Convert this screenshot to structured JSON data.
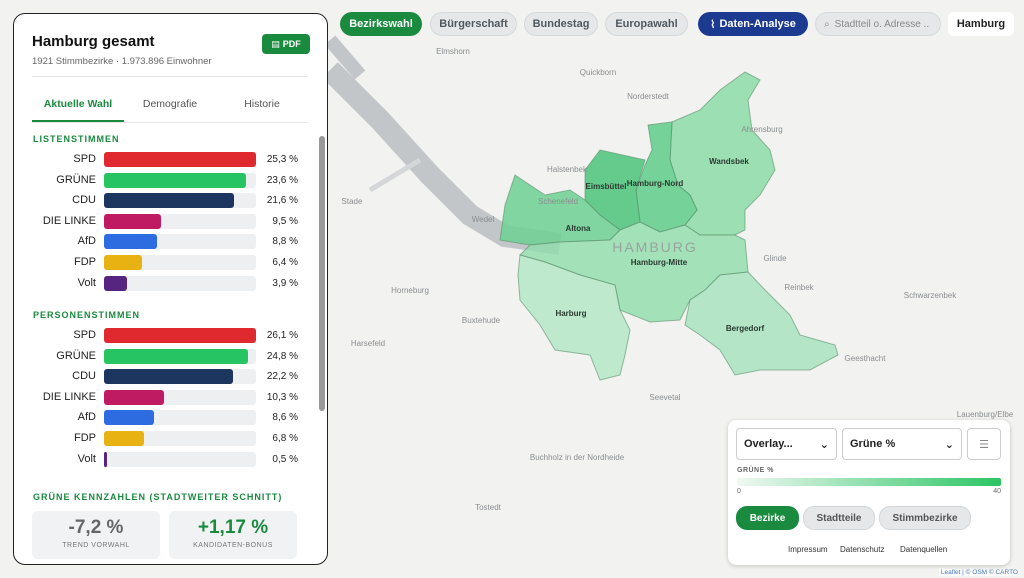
{
  "nav": {
    "tabs": [
      "Bezirkswahl",
      "Bürgerschaft",
      "Bundestag",
      "Europawahl"
    ],
    "analysis": "Daten-Analyse",
    "search_placeholder": "Stadtteil o. Adresse ..",
    "city": "Hamburg"
  },
  "panel": {
    "title": "Hamburg gesamt",
    "subtitle": "1921 Stimmbezirke · 1.973.896 Einwohner",
    "pdf": "PDF",
    "tabs": [
      "Aktuelle Wahl",
      "Demografie",
      "Historie"
    ],
    "sections": [
      {
        "heading": "LISTENSTIMMEN",
        "rows": [
          {
            "party": "SPD",
            "value": 25.3,
            "label": "25,3 %",
            "color": "#e0282f"
          },
          {
            "party": "GRÜNE",
            "value": 23.6,
            "label": "23,6 %",
            "color": "#27c464"
          },
          {
            "party": "CDU",
            "value": 21.6,
            "label": "21,6 %",
            "color": "#1d3660"
          },
          {
            "party": "DIE LINKE",
            "value": 9.5,
            "label": "9,5 %",
            "color": "#be1b63"
          },
          {
            "party": "AfD",
            "value": 8.8,
            "label": "8,8 %",
            "color": "#2c6be0"
          },
          {
            "party": "FDP",
            "value": 6.4,
            "label": "6,4 %",
            "color": "#e9b213"
          },
          {
            "party": "Volt",
            "value": 3.9,
            "label": "3,9 %",
            "color": "#562580"
          }
        ]
      },
      {
        "heading": "PERSONENSTIMMEN",
        "rows": [
          {
            "party": "SPD",
            "value": 26.1,
            "label": "26,1 %",
            "color": "#e0282f"
          },
          {
            "party": "GRÜNE",
            "value": 24.8,
            "label": "24,8 %",
            "color": "#27c464"
          },
          {
            "party": "CDU",
            "value": 22.2,
            "label": "22,2 %",
            "color": "#1d3660"
          },
          {
            "party": "DIE LINKE",
            "value": 10.3,
            "label": "10,3 %",
            "color": "#be1b63"
          },
          {
            "party": "AfD",
            "value": 8.6,
            "label": "8,6 %",
            "color": "#2c6be0"
          },
          {
            "party": "FDP",
            "value": 6.8,
            "label": "6,8 %",
            "color": "#e9b213"
          },
          {
            "party": "Volt",
            "value": 0.5,
            "label": "0,5 %",
            "color": "#562580"
          }
        ]
      }
    ],
    "kpi_heading": "GRÜNE KENNZAHLEN (STADTWEITER SCHNITT)",
    "kpis": [
      {
        "value": "-7,2 %",
        "label": "TREND VORWAHL"
      },
      {
        "value": "+1,17 %",
        "label": "KANDIDATEN-BONUS"
      }
    ]
  },
  "map": {
    "districts": [
      "Wandsbek",
      "Eimsbüttel",
      "Hamburg-Nord",
      "Altona",
      "Hamburg-Mitte",
      "Harburg",
      "Bergedorf"
    ],
    "city_label": "HAMBURG",
    "places": [
      "Elmshorn",
      "Quickborn",
      "Norderstedt",
      "Ahrensburg",
      "Halstenbek",
      "Schenefeld",
      "Wedel",
      "Stade",
      "Glinde",
      "Reinbek",
      "Horneburg",
      "Buxtehude",
      "Harsefeld",
      "Schwarzenbek",
      "Geesthacht",
      "Seevetal",
      "Buchholz in der Nordheide",
      "Tostedt",
      "Lauenburg/Elbe"
    ]
  },
  "controls": {
    "overlay": "Overlay...",
    "metric": "Grüne %",
    "legend_title": "GRÜNE %",
    "legend_min": "0",
    "legend_max": "40",
    "layers": [
      "Bezirke",
      "Stadtteile",
      "Stimmbezirke"
    ],
    "links": [
      "Impressum",
      "Datenschutz",
      "Datenquellen"
    ],
    "attribution": "Leaflet | © OSM © CARTO"
  }
}
